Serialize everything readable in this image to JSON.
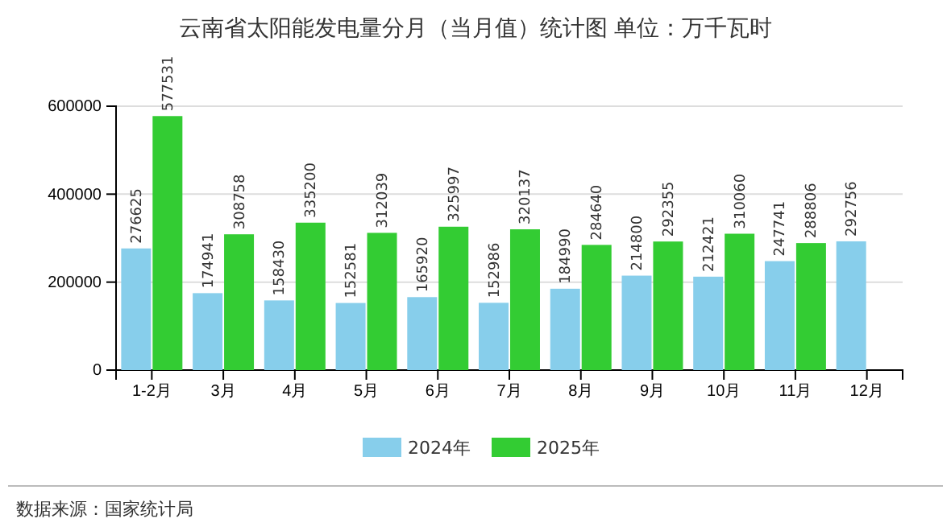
{
  "chart_data": {
    "type": "bar",
    "title": "云南省太阳能发电量分月（当月值）统计图 单位：万千瓦时",
    "categories": [
      "1-2月",
      "3月",
      "4月",
      "5月",
      "6月",
      "7月",
      "8月",
      "9月",
      "10月",
      "11月",
      "12月"
    ],
    "series": [
      {
        "name": "2024年",
        "color": "#87ceeb",
        "values": [
          276625,
          174941,
          158430,
          152581,
          165920,
          152986,
          184990,
          214800,
          212421,
          247741,
          292756
        ]
      },
      {
        "name": "2025年",
        "color": "#33cc33",
        "values": [
          577531,
          308758,
          335200,
          312039,
          325997,
          320137,
          284640,
          292355,
          310060,
          288806,
          null
        ]
      }
    ],
    "ylim": [
      0,
      600000
    ],
    "yticks": [
      0,
      200000,
      400000,
      600000
    ],
    "grid": "y",
    "legend": "bottom",
    "data_labels": true,
    "annotations": [
      "数据来源：国家统计局"
    ]
  }
}
